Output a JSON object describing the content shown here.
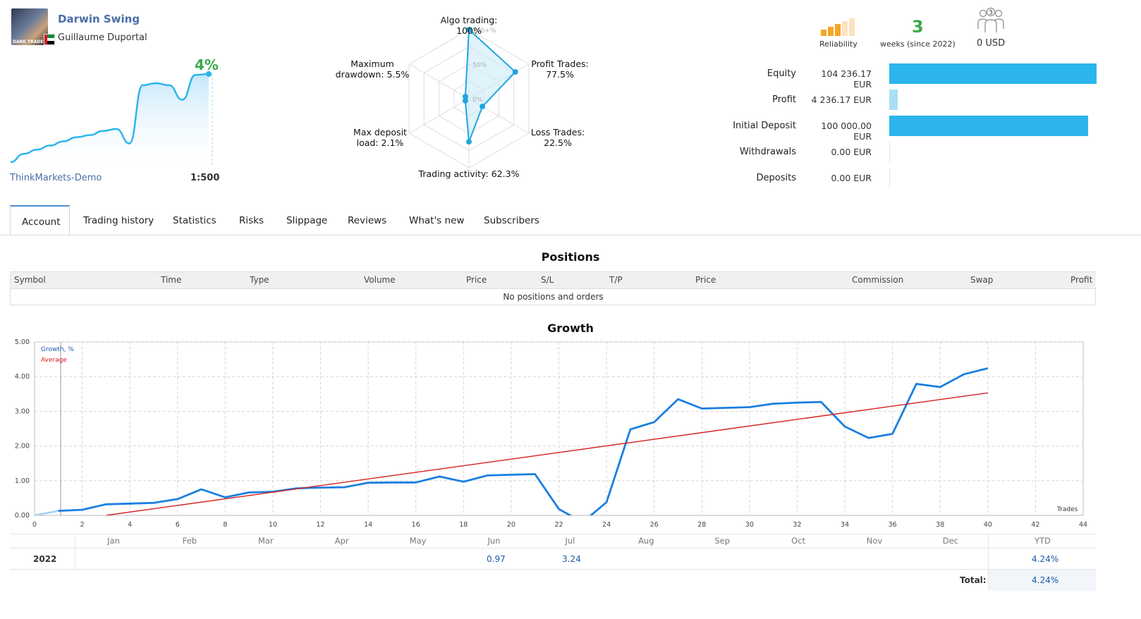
{
  "profile": {
    "name": "Darwin Swing",
    "author": "Guillaume Duportal",
    "avatar_text": "DARK TRADER",
    "growth_pct": "4%",
    "broker": "ThinkMarkets-Demo",
    "leverage": "1:500"
  },
  "radar": {
    "labels": {
      "algo": "Algo trading: 100%",
      "profit_trades": [
        "Profit Trades:",
        "77.5%"
      ],
      "loss_trades": [
        "Loss Trades:",
        "22.5%"
      ],
      "trading_activity": "Trading activity: 62.3%",
      "max_deposit": [
        "Max deposit",
        "load: 2.1%"
      ],
      "max_drawdown": [
        "Maximum",
        "drawdown: 5.5%"
      ]
    },
    "scale_labels": [
      "100+%",
      "50%",
      "0%"
    ],
    "values_pct": {
      "algo": 100,
      "profit_trades": 77.5,
      "loss_trades": 22.5,
      "trading_activity": 62.3,
      "max_deposit": 2.1,
      "max_drawdown": 5.5
    }
  },
  "stats": {
    "reliability_label": "Reliability",
    "weeks_num": "3",
    "weeks_label": "weeks (since 2022)",
    "subscribers_count": "3",
    "subscribers_value": "0 USD",
    "colors": {
      "reliability_filled": "#f5a623",
      "reliability_empty": "#fbe3bf",
      "weeks": "#3ea84a"
    }
  },
  "financials": [
    {
      "label": "Equity",
      "value": "104 236.17 EUR",
      "fraction": 1.0,
      "color": "#2bb5ec"
    },
    {
      "label": "Profit",
      "value": "4 236.17 EUR",
      "fraction": 0.04,
      "color": "#a9dff6"
    },
    {
      "label": "Initial Deposit",
      "value": "100 000.00 EUR",
      "fraction": 0.96,
      "color": "#2bb5ec"
    },
    {
      "label": "Withdrawals",
      "value": "0.00 EUR",
      "fraction": 0.0,
      "color": "#2bb5ec"
    },
    {
      "label": "Deposits",
      "value": "0.00 EUR",
      "fraction": 0.0,
      "color": "#2bb5ec"
    }
  ],
  "tabs": [
    "Account",
    "Trading history",
    "Statistics",
    "Risks",
    "Slippage",
    "Reviews",
    "What's new",
    "Subscribers"
  ],
  "positions": {
    "title": "Positions",
    "columns": [
      "Symbol",
      "Time",
      "Type",
      "Volume",
      "Price",
      "S/L",
      "T/P",
      "Price",
      "Commission",
      "Swap",
      "Profit"
    ],
    "empty_text": "No positions and orders"
  },
  "growth": {
    "title": "Growth",
    "legend": {
      "growth": "Growth, %",
      "average": "Average"
    },
    "x_axis_label": "Trades",
    "months": [
      "Jan",
      "Feb",
      "Mar",
      "Apr",
      "May",
      "Jun",
      "Jul",
      "Aug",
      "Sep",
      "Oct",
      "Nov",
      "Dec"
    ],
    "ytd_label": "YTD",
    "year": "2022",
    "monthly_values": {
      "Jun": "0.97",
      "Jul": "3.24"
    },
    "ytd_value": "4.24%",
    "total_label": "Total:",
    "total_value": "4.24%"
  },
  "chart_data": {
    "type": "line",
    "title": "Growth",
    "xlabel": "Trades",
    "ylabel": "",
    "xlim": [
      0,
      44
    ],
    "ylim": [
      0,
      5
    ],
    "x_ticks": [
      0,
      2,
      4,
      6,
      8,
      10,
      12,
      14,
      16,
      18,
      20,
      22,
      24,
      26,
      28,
      30,
      32,
      34,
      36,
      38,
      40,
      42,
      44
    ],
    "y_ticks": [
      "0.00",
      "1.00",
      "2.00",
      "3.00",
      "4.00",
      "5.00"
    ],
    "grid": true,
    "legend_position": "top-left",
    "series": [
      {
        "name": "Growth, %",
        "color": "#1a7fe0",
        "x": [
          1,
          2,
          3,
          4,
          5,
          6,
          7,
          8,
          9,
          10,
          11,
          12,
          13,
          14,
          15,
          16,
          17,
          18,
          19,
          20,
          21,
          22,
          23,
          24,
          25,
          26,
          27,
          28,
          29,
          30,
          31,
          32,
          33,
          34,
          35,
          36,
          37,
          38,
          39,
          40
        ],
        "y": [
          0.13,
          0.16,
          0.32,
          0.34,
          0.36,
          0.47,
          0.75,
          0.52,
          0.66,
          0.68,
          0.78,
          0.8,
          0.81,
          0.94,
          0.95,
          0.95,
          1.12,
          0.97,
          1.15,
          1.17,
          1.19,
          0.18,
          -0.2,
          0.38,
          2.48,
          2.69,
          3.35,
          3.08,
          3.1,
          3.12,
          3.22,
          3.25,
          3.27,
          2.56,
          2.23,
          2.35,
          3.79,
          3.7,
          4.07,
          4.24
        ]
      },
      {
        "name": "Average",
        "color": "#d42020",
        "x": [
          3,
          40
        ],
        "y": [
          0.0,
          3.53
        ]
      }
    ]
  },
  "mini_chart": {
    "values": [
      0.0,
      0.4,
      0.6,
      0.8,
      1.0,
      1.2,
      1.3,
      1.5,
      1.6,
      0.9,
      3.7,
      3.8,
      3.7,
      3.0,
      4.2,
      4.24
    ]
  }
}
